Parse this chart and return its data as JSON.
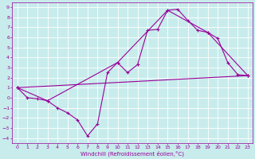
{
  "xlabel": "Windchill (Refroidissement éolien,°C)",
  "bg_color": "#c8ecec",
  "grid_color": "#ffffff",
  "line_color": "#990099",
  "xlim": [
    -0.5,
    23.5
  ],
  "ylim": [
    -4.5,
    9.5
  ],
  "xticks": [
    0,
    1,
    2,
    3,
    4,
    5,
    6,
    7,
    8,
    9,
    10,
    11,
    12,
    13,
    14,
    15,
    16,
    17,
    18,
    19,
    20,
    21,
    22,
    23
  ],
  "yticks": [
    -4,
    -3,
    -2,
    -1,
    0,
    1,
    2,
    3,
    4,
    5,
    6,
    7,
    8,
    9
  ],
  "line1_x": [
    0,
    1,
    2,
    3,
    4,
    5,
    6,
    7,
    8,
    9,
    10,
    11,
    12,
    13,
    14,
    15,
    16,
    17,
    18,
    19,
    20,
    21,
    22,
    23
  ],
  "line1_y": [
    1.0,
    0.0,
    -0.1,
    -0.3,
    -1.0,
    -1.5,
    -2.2,
    -3.8,
    -2.6,
    2.5,
    3.5,
    2.5,
    3.3,
    6.7,
    6.8,
    8.7,
    8.8,
    7.7,
    6.7,
    6.5,
    5.9,
    3.5,
    2.3,
    2.2
  ],
  "line2_x": [
    0,
    3,
    10,
    15,
    19,
    23
  ],
  "line2_y": [
    1.0,
    -0.3,
    3.5,
    8.7,
    6.5,
    2.2
  ],
  "line3_x": [
    0,
    23
  ],
  "line3_y": [
    1.0,
    2.2
  ],
  "marker": "+"
}
